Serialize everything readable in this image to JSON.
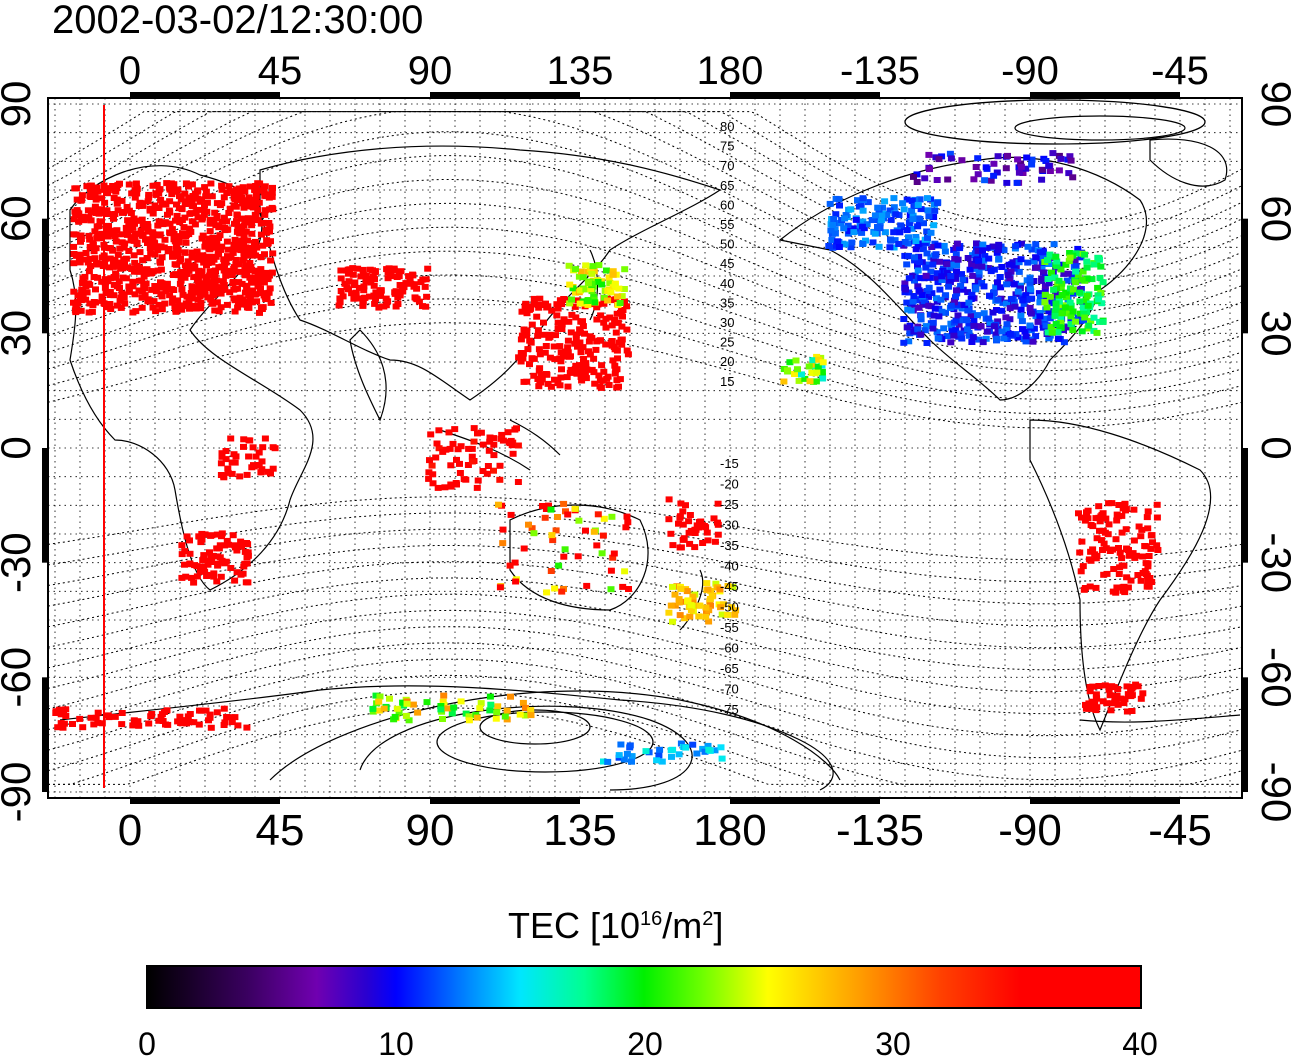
{
  "title": "2002-03-02/12:30:00",
  "map": {
    "top_x_ticks": [
      "0",
      "45",
      "90",
      "135",
      "180",
      "-135",
      "-90",
      "-45"
    ],
    "bottom_x_ticks": [
      "0",
      "45",
      "90",
      "135",
      "180",
      "-135",
      "-90",
      "-45"
    ],
    "left_y_ticks": [
      "90",
      "60",
      "30",
      "0",
      "-30",
      "-60",
      "-90"
    ],
    "right_y_ticks": [
      "90",
      "60",
      "30",
      "0",
      "-30",
      "-60",
      "-90"
    ],
    "contour_labels_north": [
      "80",
      "75",
      "70",
      "65",
      "60",
      "55",
      "50",
      "45",
      "40",
      "35",
      "30",
      "25",
      "20",
      "15"
    ],
    "contour_labels_south": [
      "-15",
      "-20",
      "-25",
      "-30",
      "-35",
      "-40",
      "-45",
      "-50",
      "-55",
      "-60",
      "-65",
      "-70",
      "-75"
    ],
    "overlay_color": "#ff0000",
    "grid": true
  },
  "colorbar": {
    "title_main": "TEC  [10",
    "title_exp1": "16",
    "title_mid": "/m",
    "title_exp2": "2",
    "title_end": "]",
    "ticks": [
      "0",
      "10",
      "20",
      "30",
      "40"
    ],
    "range": [
      0,
      40
    ],
    "colormap": [
      "#000000",
      "#7000b0",
      "#0000ff",
      "#00e6ff",
      "#00f000",
      "#ffff00",
      "#ff9a00",
      "#ff0000"
    ]
  }
}
